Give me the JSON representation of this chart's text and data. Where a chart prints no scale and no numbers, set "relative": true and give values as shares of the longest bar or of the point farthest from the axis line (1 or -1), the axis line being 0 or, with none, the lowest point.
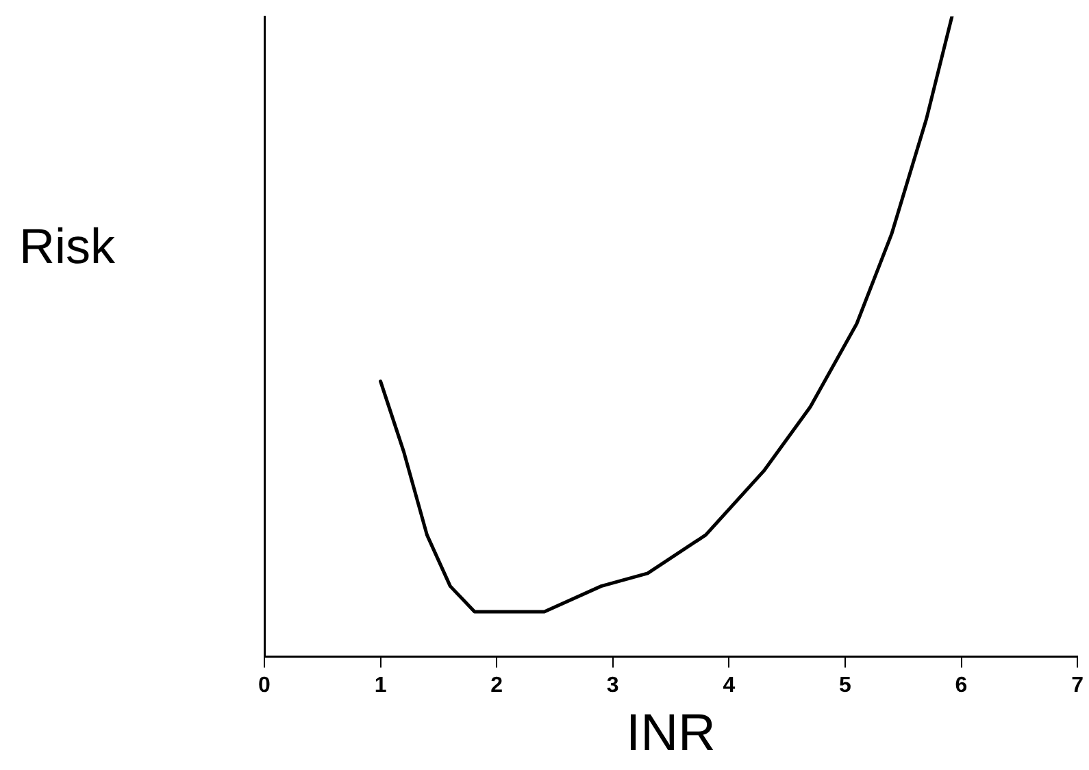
{
  "chart_data": {
    "type": "line",
    "xlabel": "INR",
    "ylabel": "Risk",
    "relative": true,
    "xlim": [
      0,
      7
    ],
    "xticks": [
      0,
      1,
      2,
      3,
      4,
      5,
      6,
      7
    ],
    "grid": false,
    "legend": false,
    "marker": "none",
    "line_style": "solid",
    "series": [
      {
        "color": "#000000",
        "x": [
          1,
          1.2,
          1.4,
          1.6,
          1.81,
          2.41,
          2.9,
          3.3,
          3.8,
          4.3,
          4.7,
          5.1,
          5.4,
          5.7,
          5.92
        ],
        "values": [
          0.43,
          0.32,
          0.19,
          0.11,
          0.07,
          0.07,
          0.11,
          0.13,
          0.19,
          0.29,
          0.39,
          0.52,
          0.66,
          0.84,
          1
        ]
      }
    ]
  }
}
